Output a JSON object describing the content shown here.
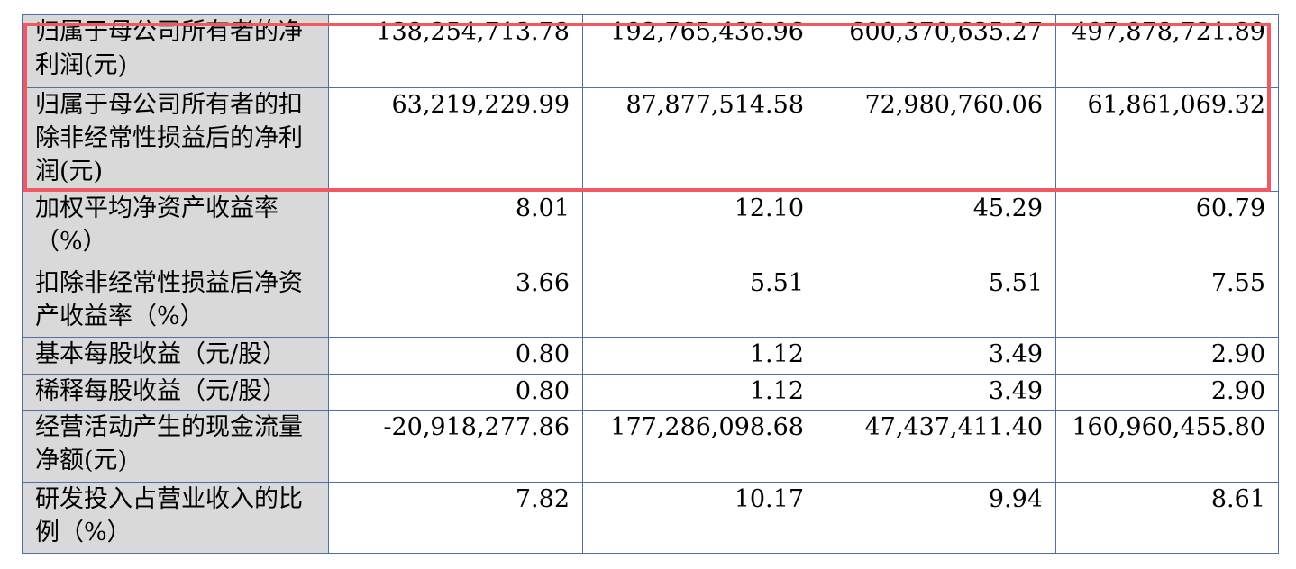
{
  "rows": [
    {
      "label": "归属于母公司所有者的净利润(元)",
      "values": [
        "138,254,713.78",
        "192,765,436.96",
        "600,370,635.27",
        "497,878,721.89"
      ]
    },
    {
      "label": "归属于母公司所有者的扣除非经常性损益后的净利润(元)",
      "values": [
        "63,219,229.99",
        "87,877,514.58",
        "72,980,760.06",
        "61,861,069.32"
      ]
    },
    {
      "label": "加权平均净资产收益率（%）",
      "values": [
        "8.01",
        "12.10",
        "45.29",
        "60.79"
      ]
    },
    {
      "label": "扣除非经常性损益后净资产收益率（%）",
      "values": [
        "3.66",
        "5.51",
        "5.51",
        "7.55"
      ]
    },
    {
      "label": "基本每股收益（元/股）",
      "values": [
        "0.80",
        "1.12",
        "3.49",
        "2.90"
      ]
    },
    {
      "label": "稀释每股收益（元/股）",
      "values": [
        "0.80",
        "1.12",
        "3.49",
        "2.90"
      ]
    },
    {
      "label": "经营活动产生的现金流量净额(元)",
      "values": [
        "-20,918,277.86",
        "177,286,098.68",
        "47,437,411.40",
        "160,960,455.80"
      ]
    },
    {
      "label": "研发投入占营业收入的比例（%）",
      "values": [
        "7.82",
        "10.17",
        "9.94",
        "8.61"
      ]
    }
  ],
  "highlight": {
    "color": "#ef5a62"
  }
}
